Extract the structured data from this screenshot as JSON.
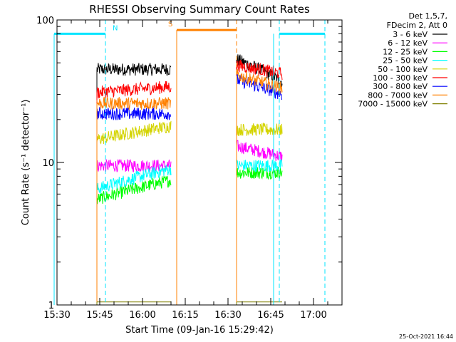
{
  "chart_data": {
    "type": "line",
    "title": "RHESSI Observing Summary Count Rates",
    "xlabel": "Start Time (09-Jan-16 15:29:42)",
    "ylabel": "Count Rate (s⁻¹ detector⁻¹)",
    "yscale": "log",
    "ylim": [
      1,
      100
    ],
    "y_ticks": [
      {
        "v": 1,
        "label": "1"
      },
      {
        "v": 10,
        "label": "10"
      },
      {
        "v": 100,
        "label": "100"
      }
    ],
    "xlim": [
      "15:30",
      "17:10"
    ],
    "x_ticks": [
      "15:30",
      "15:45",
      "16:00",
      "16:15",
      "16:30",
      "16:45",
      "17:00"
    ],
    "legend_position": "top-right, outside plot",
    "legend_header": [
      "Det 1,5,7,",
      "FDecim 2, Att 0"
    ],
    "footer": "25-Oct-2021 16:44",
    "series": [
      {
        "name": "3 - 6 keV",
        "color": "#000000",
        "segments": [
          {
            "x": [
              "15:44",
              "16:10"
            ],
            "y": 45
          },
          {
            "x": [
              "16:33",
              "16:49"
            ],
            "y": [
              53,
              37
            ]
          }
        ]
      },
      {
        "name": "6 - 12 keV",
        "color": "#ff00ff",
        "segments": [
          {
            "x": [
              "15:44",
              "16:10"
            ],
            "y": 9.5
          },
          {
            "x": [
              "16:33",
              "16:49"
            ],
            "y": [
              13,
              11
            ]
          }
        ]
      },
      {
        "name": "12 - 25 keV",
        "color": "#00ff00",
        "segments": [
          {
            "x": [
              "15:44",
              "16:10"
            ],
            "y": [
              5.5,
              7.5
            ]
          },
          {
            "x": [
              "16:33",
              "16:49"
            ],
            "y": 8.5
          }
        ]
      },
      {
        "name": "25 - 50 keV",
        "color": "#00ffff",
        "segments": [
          {
            "x": [
              "15:44",
              "16:10"
            ],
            "y": [
              6.5,
              9
            ]
          },
          {
            "x": [
              "16:33",
              "16:49"
            ],
            "y": 9.5
          }
        ]
      },
      {
        "name": "50 - 100 keV",
        "color": "#d4d400",
        "segments": [
          {
            "x": [
              "15:44",
              "16:10"
            ],
            "y": [
              14.5,
              18
            ]
          },
          {
            "x": [
              "16:33",
              "16:49"
            ],
            "y": 17
          }
        ]
      },
      {
        "name": "100 - 300 keV",
        "color": "#ff0000",
        "segments": [
          {
            "x": [
              "15:44",
              "16:10"
            ],
            "y": [
              31,
              34
            ]
          },
          {
            "x": [
              "16:33",
              "16:49"
            ],
            "y": [
              48,
              42
            ]
          }
        ]
      },
      {
        "name": "300 - 800 keV",
        "color": "#0000ff",
        "segments": [
          {
            "x": [
              "15:44",
              "16:10"
            ],
            "y": 22
          },
          {
            "x": [
              "16:33",
              "16:49"
            ],
            "y": [
              38,
              30
            ]
          }
        ]
      },
      {
        "name": "800 - 7000 keV",
        "color": "#ff8000",
        "segments": [
          {
            "x": [
              "15:44",
              "16:10"
            ],
            "y": 26
          },
          {
            "x": [
              "16:33",
              "16:49"
            ],
            "y": [
              41,
              33
            ]
          }
        ]
      },
      {
        "name": "7000 - 15000 keV",
        "color": "#808000",
        "segments": [
          {
            "x": [
              "15:44",
              "16:10"
            ],
            "y": 1.05
          },
          {
            "x": [
              "16:33",
              "16:49"
            ],
            "y": 1.05
          }
        ]
      }
    ],
    "flags": [
      {
        "name": "N",
        "label": "N",
        "color": "#00e5ff",
        "y": 80,
        "segments": [
          [
            "15:29",
            "15:47"
          ],
          [
            "16:48",
            "17:04"
          ]
        ],
        "boundaries": [
          "15:47",
          "16:48",
          "17:04"
        ],
        "solid": [
          "15:29",
          "16:46"
        ]
      },
      {
        "name": "S",
        "label": "S",
        "color": "#ff8000",
        "y": 85,
        "segments": [
          [
            "16:12",
            "16:33"
          ]
        ],
        "boundaries": [
          "16:33"
        ],
        "solid": [
          "16:12"
        ]
      }
    ]
  }
}
